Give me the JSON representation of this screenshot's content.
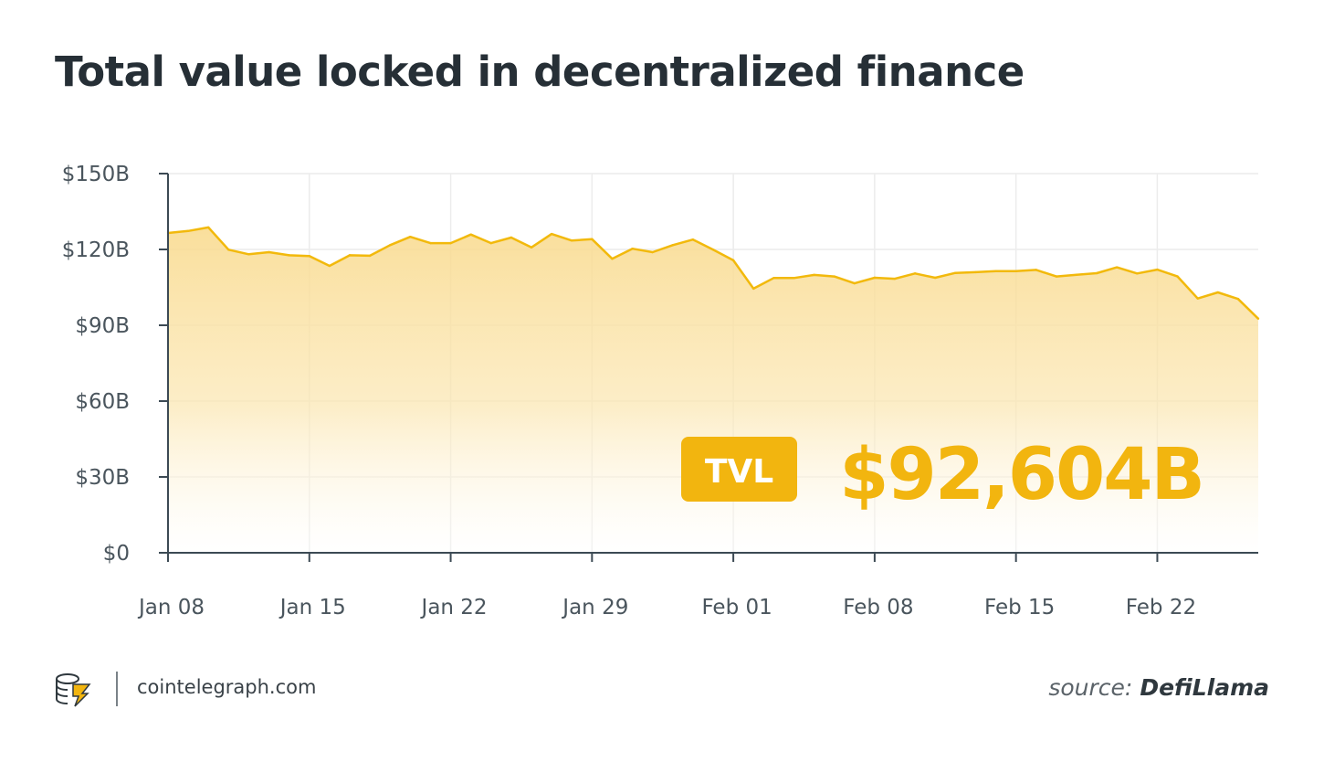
{
  "title": "Total value locked in decentralized finance",
  "chart_data": {
    "type": "area",
    "title": "Total value locked in decentralized finance",
    "xlabel": "",
    "ylabel": "",
    "ylim": [
      0,
      150
    ],
    "yticks": [
      0,
      30,
      60,
      90,
      120,
      150
    ],
    "ytick_labels": [
      "$0",
      "$30B",
      "$60B",
      "$90B",
      "$120B",
      "$150B"
    ],
    "xtick_labels": [
      {
        "label": "Jan 08",
        "index": 0
      },
      {
        "label": "Jan 15",
        "index": 7
      },
      {
        "label": "Jan 22",
        "index": 14
      },
      {
        "label": "Jan 29",
        "index": 21
      },
      {
        "label": "Feb 01",
        "index": 28
      },
      {
        "label": "Feb 08",
        "index": 35
      },
      {
        "label": "Feb 15",
        "index": 42
      },
      {
        "label": "Feb 22",
        "index": 49
      }
    ],
    "grid": true,
    "series": [
      {
        "values": [
          126.5,
          127.3,
          128.7,
          119.9,
          118.1,
          118.9,
          117.7,
          117.4,
          113.5,
          117.7,
          117.5,
          121.7,
          125.0,
          122.5,
          122.5,
          125.9,
          122.5,
          124.7,
          120.8,
          126.1,
          123.5,
          124.1,
          116.3,
          120.3,
          118.9,
          121.7,
          123.9,
          119.9,
          115.7,
          104.5,
          108.7,
          108.7,
          109.9,
          109.3,
          106.6,
          108.8,
          108.4,
          110.5,
          108.8,
          110.7,
          111.0,
          111.4,
          111.4,
          111.9,
          109.3,
          110.0,
          110.6,
          112.9,
          110.5,
          112.0,
          109.3,
          100.6,
          103.0,
          100.4,
          92.6
        ]
      }
    ],
    "colors": {
      "line": "#f2b90c",
      "fill_top": "#f9d98a",
      "axis": "#3c4a54",
      "grid": "#ececec"
    },
    "annotation": {
      "badge": "TVL",
      "value": "$92,604B",
      "color": "#f2b50f"
    }
  },
  "footer": {
    "site": "cointelegraph.com",
    "source_prefix": "source:",
    "source_name": "DefiLlama",
    "logo_icon": "cointelegraph-logo-icon"
  }
}
